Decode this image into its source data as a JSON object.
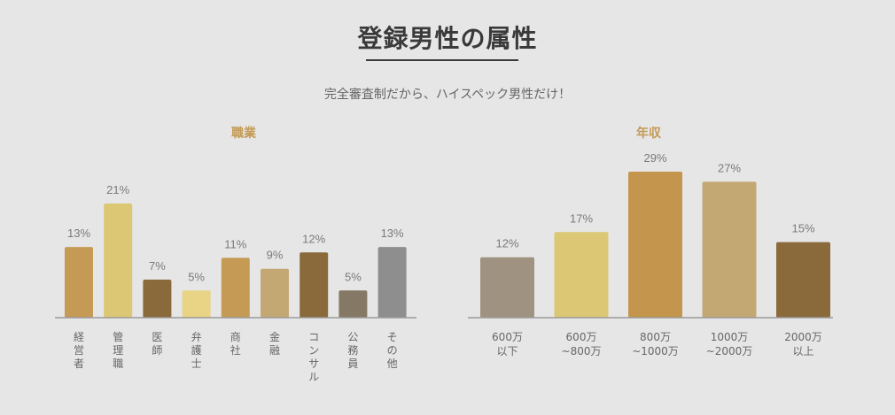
{
  "page": {
    "title": "登録男性の属性",
    "subtitle": "完全審査制だから、ハイスペック男性だけ！",
    "accent_color": "#c49a55",
    "text_color": "#3a3a3a"
  },
  "chart_data": [
    {
      "type": "bar",
      "title": "職業",
      "categories": [
        "経営者",
        "管理職",
        "医師",
        "弁護士",
        "商社",
        "金融",
        "コンサル",
        "公務員",
        "その他"
      ],
      "values": [
        13,
        21,
        7,
        5,
        11,
        9,
        12,
        5,
        13
      ],
      "value_labels": [
        "13%",
        "21%",
        "7%",
        "5%",
        "11%",
        "9%",
        "12%",
        "5%",
        "13%"
      ],
      "colors": [
        "#c49a55",
        "#dcc774",
        "#8a6a3b",
        "#e8d484",
        "#c49a55",
        "#c4a874",
        "#8a6a3b",
        "#857865",
        "#8e8e8e"
      ],
      "unit": "%",
      "ylim": [
        0,
        21
      ],
      "grid": false,
      "legend": "none"
    },
    {
      "type": "bar",
      "title": "年収",
      "categories": [
        "600万\n以下",
        "600万\n~800万",
        "800万\n~1000万",
        "1000万\n~2000万",
        "2000万\n以上"
      ],
      "values": [
        12,
        17,
        29,
        27,
        15
      ],
      "value_labels": [
        "12%",
        "17%",
        "29%",
        "27%",
        "15%"
      ],
      "colors": [
        "#a09280",
        "#dcc774",
        "#c4964d",
        "#c4a874",
        "#8a6a3b"
      ],
      "unit": "%",
      "ylim": [
        0,
        29
      ],
      "grid": false,
      "legend": "none"
    }
  ]
}
